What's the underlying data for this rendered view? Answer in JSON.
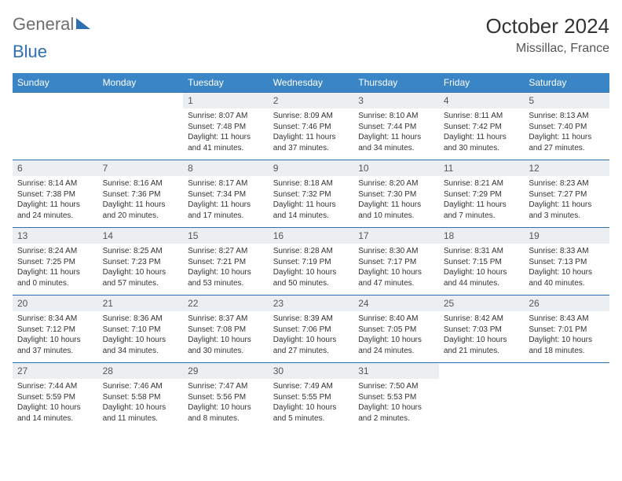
{
  "logo": {
    "part1": "General",
    "part2": "Blue"
  },
  "header": {
    "month": "October 2024",
    "location": "Missillac, France"
  },
  "style": {
    "header_bg": "#3a85c6",
    "header_text": "#ffffff",
    "cell_border": "#2d6fb0",
    "daynum_bg": "#eceff1",
    "body_text": "#333333",
    "font_family": "Arial",
    "th_fontsize": 12,
    "daynum_fontsize": 12,
    "cell_fontsize": 10
  },
  "day_names": [
    "Sunday",
    "Monday",
    "Tuesday",
    "Wednesday",
    "Thursday",
    "Friday",
    "Saturday"
  ],
  "weeks": [
    [
      null,
      null,
      {
        "n": "1",
        "sr": "8:07 AM",
        "ss": "7:48 PM",
        "dl": "11 hours and 41 minutes."
      },
      {
        "n": "2",
        "sr": "8:09 AM",
        "ss": "7:46 PM",
        "dl": "11 hours and 37 minutes."
      },
      {
        "n": "3",
        "sr": "8:10 AM",
        "ss": "7:44 PM",
        "dl": "11 hours and 34 minutes."
      },
      {
        "n": "4",
        "sr": "8:11 AM",
        "ss": "7:42 PM",
        "dl": "11 hours and 30 minutes."
      },
      {
        "n": "5",
        "sr": "8:13 AM",
        "ss": "7:40 PM",
        "dl": "11 hours and 27 minutes."
      }
    ],
    [
      {
        "n": "6",
        "sr": "8:14 AM",
        "ss": "7:38 PM",
        "dl": "11 hours and 24 minutes."
      },
      {
        "n": "7",
        "sr": "8:16 AM",
        "ss": "7:36 PM",
        "dl": "11 hours and 20 minutes."
      },
      {
        "n": "8",
        "sr": "8:17 AM",
        "ss": "7:34 PM",
        "dl": "11 hours and 17 minutes."
      },
      {
        "n": "9",
        "sr": "8:18 AM",
        "ss": "7:32 PM",
        "dl": "11 hours and 14 minutes."
      },
      {
        "n": "10",
        "sr": "8:20 AM",
        "ss": "7:30 PM",
        "dl": "11 hours and 10 minutes."
      },
      {
        "n": "11",
        "sr": "8:21 AM",
        "ss": "7:29 PM",
        "dl": "11 hours and 7 minutes."
      },
      {
        "n": "12",
        "sr": "8:23 AM",
        "ss": "7:27 PM",
        "dl": "11 hours and 3 minutes."
      }
    ],
    [
      {
        "n": "13",
        "sr": "8:24 AM",
        "ss": "7:25 PM",
        "dl": "11 hours and 0 minutes."
      },
      {
        "n": "14",
        "sr": "8:25 AM",
        "ss": "7:23 PM",
        "dl": "10 hours and 57 minutes."
      },
      {
        "n": "15",
        "sr": "8:27 AM",
        "ss": "7:21 PM",
        "dl": "10 hours and 53 minutes."
      },
      {
        "n": "16",
        "sr": "8:28 AM",
        "ss": "7:19 PM",
        "dl": "10 hours and 50 minutes."
      },
      {
        "n": "17",
        "sr": "8:30 AM",
        "ss": "7:17 PM",
        "dl": "10 hours and 47 minutes."
      },
      {
        "n": "18",
        "sr": "8:31 AM",
        "ss": "7:15 PM",
        "dl": "10 hours and 44 minutes."
      },
      {
        "n": "19",
        "sr": "8:33 AM",
        "ss": "7:13 PM",
        "dl": "10 hours and 40 minutes."
      }
    ],
    [
      {
        "n": "20",
        "sr": "8:34 AM",
        "ss": "7:12 PM",
        "dl": "10 hours and 37 minutes."
      },
      {
        "n": "21",
        "sr": "8:36 AM",
        "ss": "7:10 PM",
        "dl": "10 hours and 34 minutes."
      },
      {
        "n": "22",
        "sr": "8:37 AM",
        "ss": "7:08 PM",
        "dl": "10 hours and 30 minutes."
      },
      {
        "n": "23",
        "sr": "8:39 AM",
        "ss": "7:06 PM",
        "dl": "10 hours and 27 minutes."
      },
      {
        "n": "24",
        "sr": "8:40 AM",
        "ss": "7:05 PM",
        "dl": "10 hours and 24 minutes."
      },
      {
        "n": "25",
        "sr": "8:42 AM",
        "ss": "7:03 PM",
        "dl": "10 hours and 21 minutes."
      },
      {
        "n": "26",
        "sr": "8:43 AM",
        "ss": "7:01 PM",
        "dl": "10 hours and 18 minutes."
      }
    ],
    [
      {
        "n": "27",
        "sr": "7:44 AM",
        "ss": "5:59 PM",
        "dl": "10 hours and 14 minutes."
      },
      {
        "n": "28",
        "sr": "7:46 AM",
        "ss": "5:58 PM",
        "dl": "10 hours and 11 minutes."
      },
      {
        "n": "29",
        "sr": "7:47 AM",
        "ss": "5:56 PM",
        "dl": "10 hours and 8 minutes."
      },
      {
        "n": "30",
        "sr": "7:49 AM",
        "ss": "5:55 PM",
        "dl": "10 hours and 5 minutes."
      },
      {
        "n": "31",
        "sr": "7:50 AM",
        "ss": "5:53 PM",
        "dl": "10 hours and 2 minutes."
      },
      null,
      null
    ]
  ],
  "labels": {
    "sunrise": "Sunrise:",
    "sunset": "Sunset:",
    "daylight": "Daylight:"
  }
}
